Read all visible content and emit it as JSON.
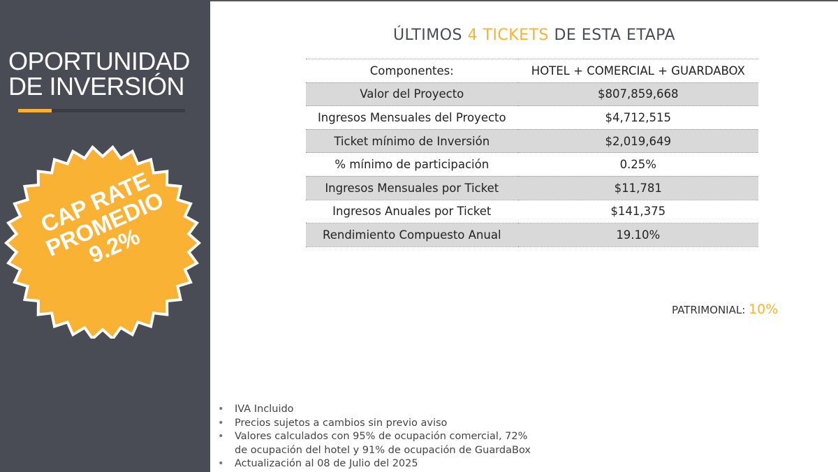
{
  "sidebar": {
    "title_line1": "OPORTUNIDAD",
    "title_line2": "DE INVERSIÓN",
    "badge": {
      "line1": "CAP RATE",
      "line2": "PROMEDIO",
      "line3": "9.2%"
    }
  },
  "colors": {
    "accent": "#f9b233",
    "sidebar": "#4a4c55",
    "row_shade": "#d9d9d9"
  },
  "heading": {
    "pre": "ÚLTIMOS ",
    "accent": "4 TICKETS",
    "post": " DE ESTA ETAPA"
  },
  "table": {
    "rows": [
      {
        "label": "Componentes:",
        "value": "HOTEL + COMERCIAL + GUARDABOX"
      },
      {
        "label": "Valor del Proyecto",
        "value": "$807,859,668"
      },
      {
        "label": "Ingresos Mensuales del Proyecto",
        "value": "$4,712,515"
      },
      {
        "label": "Ticket mínimo de Inversión",
        "value": "$2,019,649"
      },
      {
        "label": "% mínimo de participación",
        "value": "0.25%"
      },
      {
        "label": "Ingresos Mensuales por Ticket",
        "value": "$11,781"
      },
      {
        "label": "Ingresos Anuales por Ticket",
        "value": "$141,375"
      },
      {
        "label": "Rendimiento Compuesto Anual",
        "value": "19.10%"
      }
    ]
  },
  "patrimonial": {
    "label": "PATRIMONIAL: ",
    "value": "10%"
  },
  "notes": [
    "IVA Incluido",
    "Precios sujetos a cambios sin previo aviso",
    "Valores calculados con 95% de ocupación comercial, 72%",
    "de ocupación del hotel y 91% de ocupación de GuardaBox",
    "Actualización al 08 de Julio del 2025"
  ]
}
